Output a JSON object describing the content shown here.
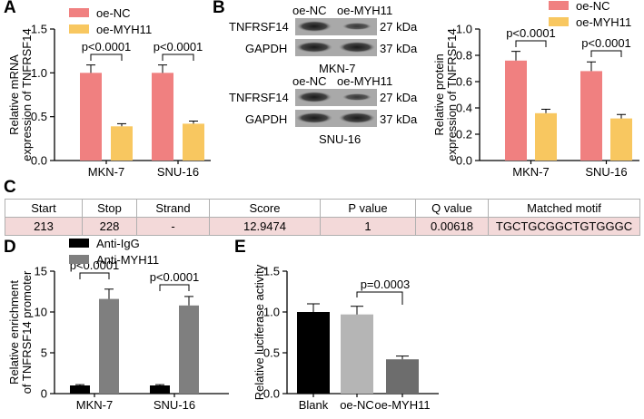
{
  "panels": {
    "A": "A",
    "B": "B",
    "C": "C",
    "D": "D",
    "E": "E"
  },
  "colors": {
    "pink": "#f08080",
    "yellow": "#f8c760",
    "black": "#000000",
    "gray": "#7f7f7f",
    "lightgray": "#b5b5b5",
    "darkgray": "#6d6d6d"
  },
  "blot": {
    "top": {
      "lanes": [
        "oe-NC",
        "oe-MYH11"
      ],
      "rows": [
        "TNFRSF14",
        "GAPDH"
      ],
      "kda": [
        "27 kDa",
        "37 kDa"
      ],
      "cell": "MKN-7"
    },
    "bottom": {
      "lanes": [
        "oe-NC",
        "oe-MYH11"
      ],
      "rows": [
        "TNFRSF14",
        "GAPDH"
      ],
      "kda": [
        "27 kDa",
        "37 kDa"
      ],
      "cell": "SNU-16"
    }
  },
  "table": {
    "headers": [
      "Start",
      "Stop",
      "Strand",
      "Score",
      "P value",
      "Q value",
      "Matched motif"
    ],
    "row": [
      "213",
      "228",
      "-",
      "12.9474",
      "1",
      "0.00618",
      "TGCTGCGGCTGTGGGC"
    ]
  },
  "chart_data": [
    {
      "id": "A",
      "type": "bar",
      "categories": [
        "MKN-7",
        "SNU-16"
      ],
      "series": [
        {
          "name": "oe-NC",
          "color": "#f08080",
          "values": [
            1.0,
            1.0
          ],
          "errors": [
            0.09,
            0.09
          ]
        },
        {
          "name": "oe-MYH11",
          "color": "#f8c760",
          "values": [
            0.39,
            0.42
          ],
          "errors": [
            0.03,
            0.03
          ]
        }
      ],
      "ylabel": "Relative mRNA\nexpression of TNFRSF14",
      "ylim": [
        0,
        1.5
      ],
      "yticks": [
        0.0,
        0.5,
        1.0,
        1.5
      ],
      "annotations": [
        "p<0.0001",
        "p<0.0001"
      ],
      "legend": "top"
    },
    {
      "id": "B",
      "type": "bar",
      "categories": [
        "MKN-7",
        "SNU-16"
      ],
      "series": [
        {
          "name": "oe-NC",
          "color": "#f08080",
          "values": [
            0.76,
            0.68
          ],
          "errors": [
            0.07,
            0.07
          ]
        },
        {
          "name": "oe-MYH11",
          "color": "#f8c760",
          "values": [
            0.36,
            0.32
          ],
          "errors": [
            0.03,
            0.03
          ]
        }
      ],
      "ylabel": "Relative protein\nexpression of TNFRSF14",
      "ylim": [
        0,
        1.0
      ],
      "yticks": [
        0.0,
        0.2,
        0.4,
        0.6,
        0.8,
        1.0
      ],
      "annotations": [
        "p<0.0001",
        "p<0.0001"
      ],
      "legend": "top"
    },
    {
      "id": "D",
      "type": "bar",
      "categories": [
        "MKN-7",
        "SNU-16"
      ],
      "series": [
        {
          "name": "Anti-IgG",
          "color": "#000000",
          "values": [
            1.0,
            1.0
          ],
          "errors": [
            0.1,
            0.1
          ]
        },
        {
          "name": "Anti-MYH11",
          "color": "#7f7f7f",
          "values": [
            11.6,
            10.8
          ],
          "errors": [
            1.2,
            1.1
          ]
        }
      ],
      "ylabel": "Relative enrichment\nof TNFRSF14 promoter",
      "ylim": [
        0,
        15
      ],
      "yticks": [
        0,
        5,
        10,
        15
      ],
      "annotations": [
        "p<0.0001",
        "p<0.0001"
      ],
      "legend": "top-left"
    },
    {
      "id": "E",
      "type": "bar",
      "categories": [
        "Blank",
        "oe-NC",
        "oe-MYH11"
      ],
      "colors": [
        "#000000",
        "#b5b5b5",
        "#6d6d6d"
      ],
      "values": [
        1.0,
        0.97,
        0.42
      ],
      "errors": [
        0.1,
        0.1,
        0.04
      ],
      "ylabel": "Relative luciferase activity",
      "ylim": [
        0,
        1.5
      ],
      "yticks": [
        0.0,
        0.5,
        1.0,
        1.5
      ],
      "annotations": [
        "p=0.0003"
      ]
    }
  ]
}
